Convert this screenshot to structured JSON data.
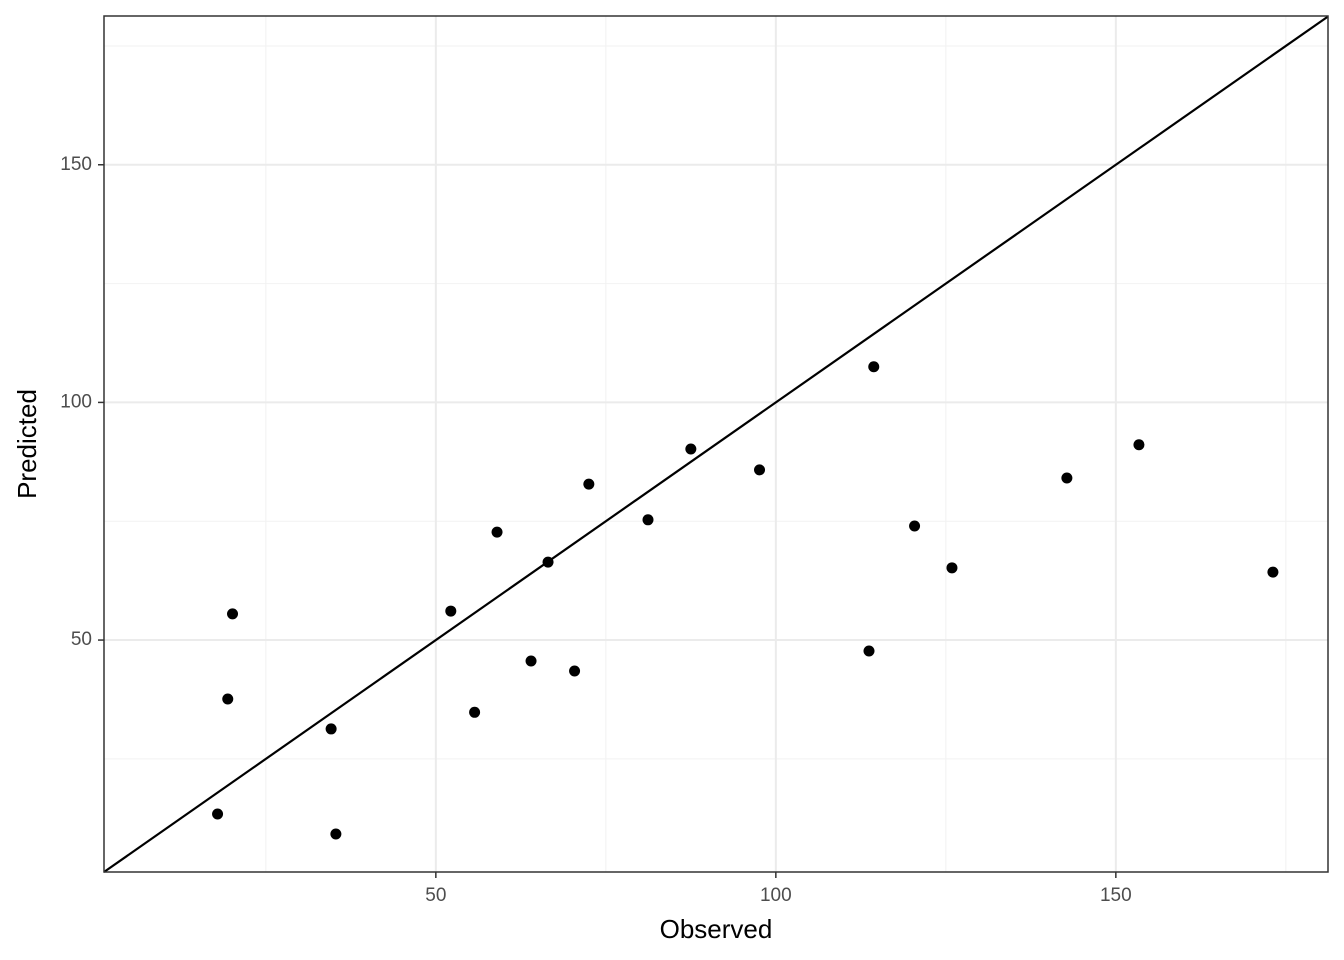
{
  "chart_data": {
    "type": "scatter",
    "x_label": "Observed",
    "y_label": "Predicted",
    "series": [
      {
        "color": "#000000",
        "x": [
          17.9,
          19.4,
          20.1,
          34.6,
          35.3,
          52.2,
          55.7,
          59.0,
          64.0,
          66.5,
          70.4,
          72.5,
          81.2,
          87.5,
          97.6,
          113.7,
          114.4,
          120.4,
          125.9,
          142.8,
          153.4,
          173.1
        ],
        "values": [
          13.4,
          37.6,
          55.5,
          31.3,
          9.2,
          56.1,
          34.8,
          72.7,
          45.6,
          66.4,
          43.5,
          82.8,
          75.3,
          90.2,
          85.8,
          47.7,
          107.5,
          74.0,
          65.2,
          84.1,
          91.1,
          64.3
        ]
      }
    ],
    "xlim": [
      1.2,
      181.2
    ],
    "ylim": [
      1.2,
      181.3
    ],
    "xticks": [
      50,
      100,
      150
    ],
    "yticks": [
      50,
      100,
      150
    ],
    "x_minor_ticks": [
      25,
      75,
      125,
      175
    ],
    "y_minor_ticks": [
      25,
      75,
      125,
      175
    ],
    "grid": true,
    "identity_line": true
  }
}
